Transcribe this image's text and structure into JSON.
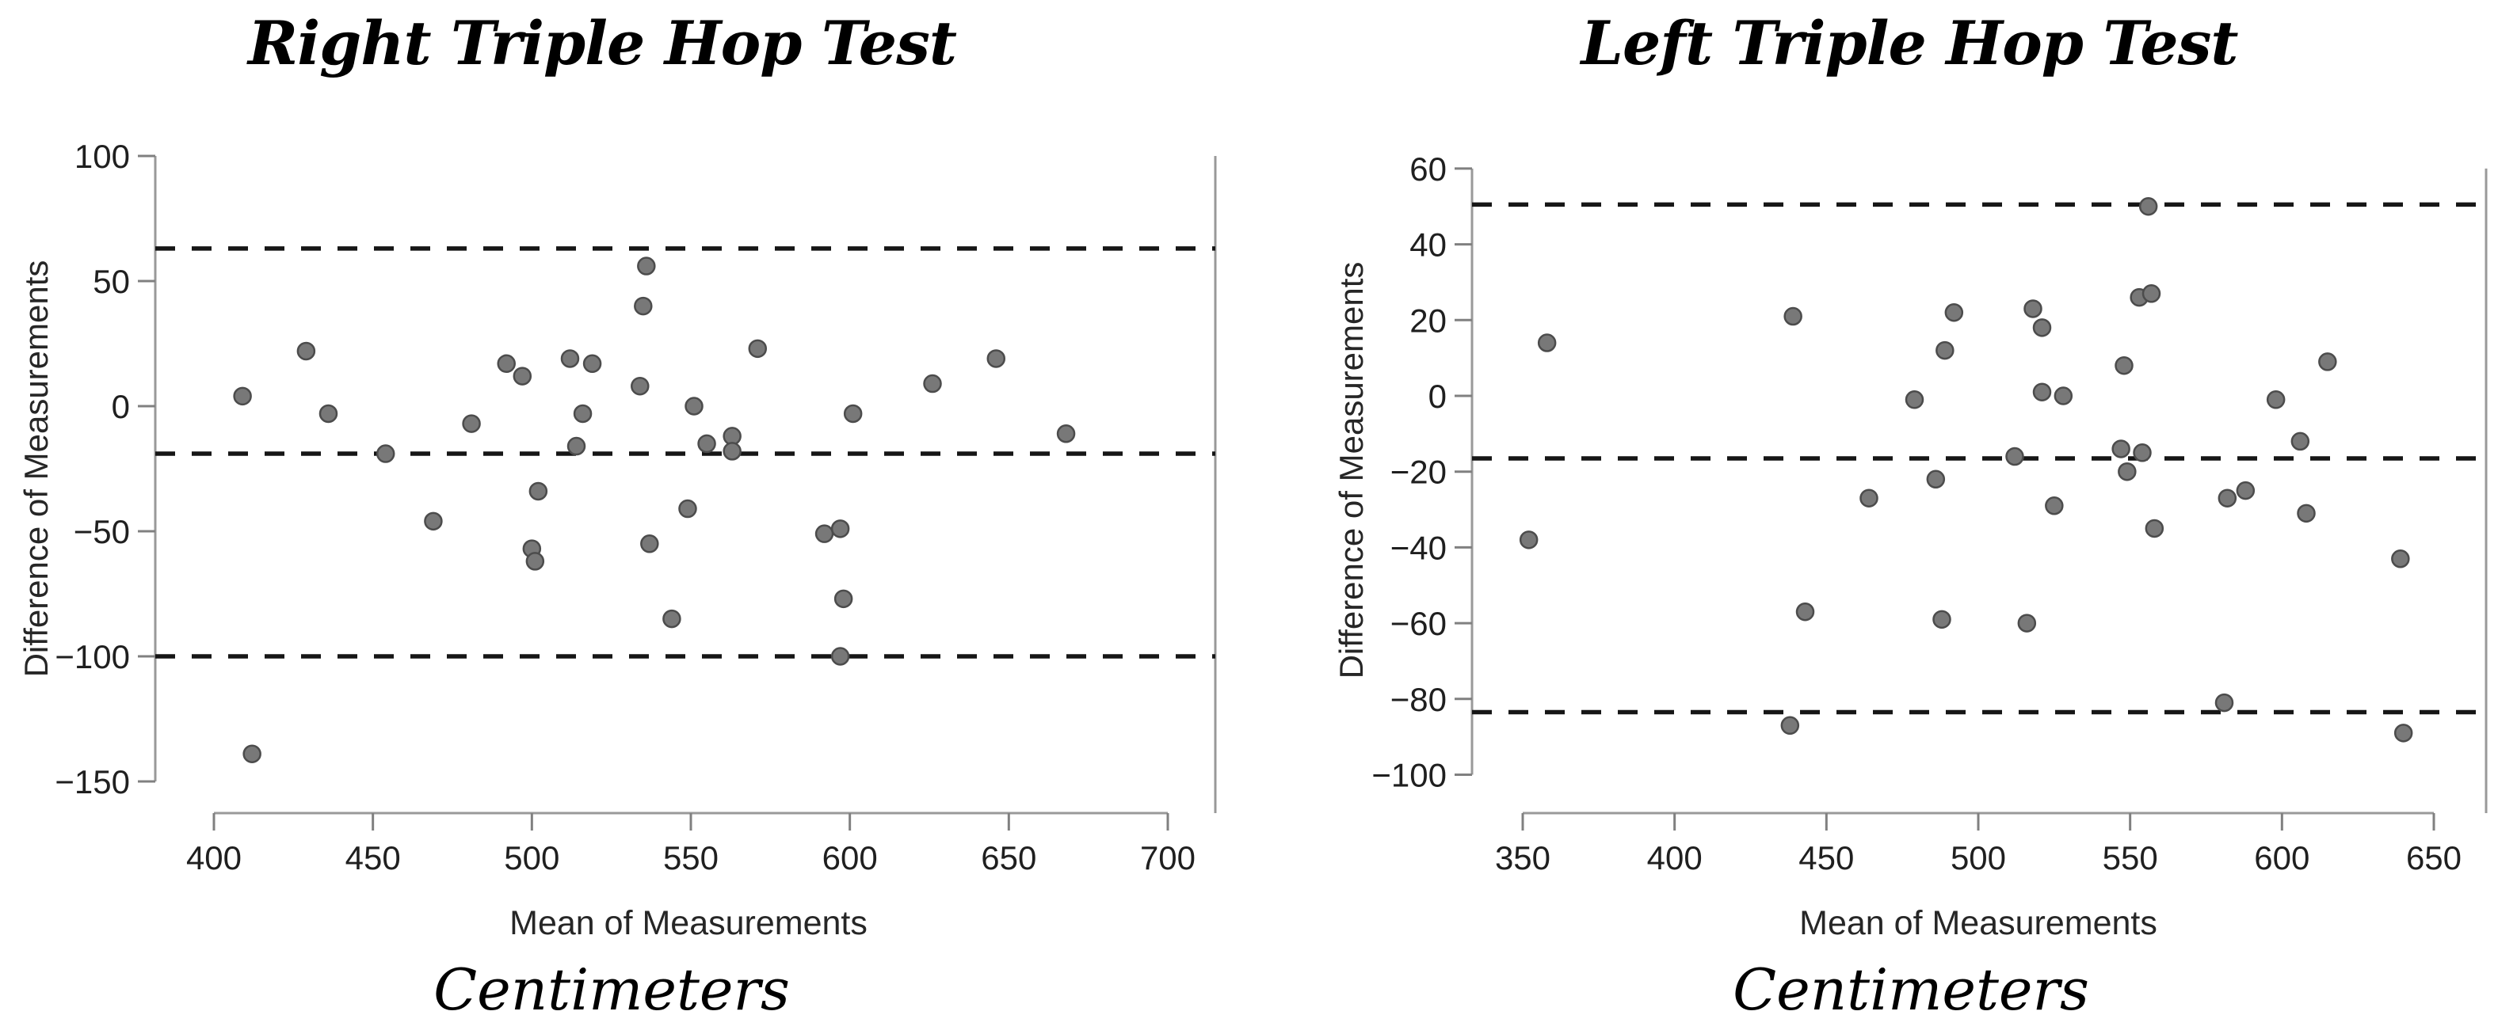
{
  "page": {
    "background": "#ffffff"
  },
  "styles": {
    "point_fill": "#787878",
    "point_stroke": "#4c4c4c",
    "dash_color": "#161616",
    "axis_color": "#999999",
    "tick_color": "#808080",
    "tick_label_color": "#1f1f1f",
    "axis_title_color": "#262626",
    "title_color": "#000000"
  },
  "chart_data": [
    {
      "id": "right-triple-hop",
      "type": "scatter",
      "title": "Right Triple Hop Test",
      "xlabel": "Mean of Measurements",
      "ylabel": "Difference of Measurements",
      "units_label": "Centimeters",
      "x_ticks": [
        400,
        450,
        500,
        550,
        600,
        650,
        700
      ],
      "y_ticks": [
        100,
        50,
        0,
        -50,
        -100,
        -150
      ],
      "xlim": [
        400,
        700
      ],
      "ylim": [
        -150,
        100
      ],
      "grid": false,
      "legend": false,
      "reference_lines": {
        "upper_loa": 63,
        "mean": -19,
        "lower_loa": -100
      },
      "points": [
        [
          409,
          4
        ],
        [
          429,
          22
        ],
        [
          436,
          -3
        ],
        [
          454,
          -19
        ],
        [
          469,
          -46
        ],
        [
          481,
          -7
        ],
        [
          492,
          17
        ],
        [
          497,
          12
        ],
        [
          502,
          -34
        ],
        [
          500,
          -57
        ],
        [
          501,
          -62
        ],
        [
          512,
          19
        ],
        [
          519,
          17
        ],
        [
          516,
          -3
        ],
        [
          514,
          -16
        ],
        [
          536,
          56
        ],
        [
          535,
          40
        ],
        [
          534,
          8
        ],
        [
          537,
          -55
        ],
        [
          544,
          -85
        ],
        [
          551,
          0
        ],
        [
          549,
          -41
        ],
        [
          555,
          -15
        ],
        [
          563,
          -12
        ],
        [
          563,
          -18
        ],
        [
          571,
          23
        ],
        [
          592,
          -51
        ],
        [
          597,
          -49
        ],
        [
          598,
          -77
        ],
        [
          597,
          -100
        ],
        [
          601,
          -3
        ],
        [
          626,
          9
        ],
        [
          646,
          19
        ],
        [
          668,
          -11
        ],
        [
          412,
          -139
        ]
      ]
    },
    {
      "id": "left-triple-hop",
      "type": "scatter",
      "title": "Left Triple Hop Test",
      "xlabel": "Mean of Measurements",
      "ylabel": "Difference of Measurements",
      "units_label": "Centimeters",
      "x_ticks": [
        350,
        400,
        450,
        500,
        550,
        600,
        650
      ],
      "y_ticks": [
        60,
        40,
        20,
        0,
        -20,
        -40,
        -60,
        -80,
        -100
      ],
      "xlim": [
        350,
        650
      ],
      "ylim": [
        -100,
        60
      ],
      "grid": false,
      "legend": false,
      "reference_lines": {
        "upper_loa": 50.5,
        "mean": -16.5,
        "lower_loa": -83.5
      },
      "points": [
        [
          358,
          14
        ],
        [
          352,
          -38
        ],
        [
          439,
          21
        ],
        [
          443,
          -57
        ],
        [
          438,
          -87
        ],
        [
          464,
          -27
        ],
        [
          479,
          -1
        ],
        [
          492,
          22
        ],
        [
          489,
          12
        ],
        [
          486,
          -22
        ],
        [
          488,
          -59
        ],
        [
          518,
          23
        ],
        [
          521,
          18
        ],
        [
          521,
          1
        ],
        [
          528,
          0
        ],
        [
          512,
          -16
        ],
        [
          525,
          -29
        ],
        [
          516,
          -60
        ],
        [
          548,
          8
        ],
        [
          547,
          -14
        ],
        [
          554,
          -15
        ],
        [
          549,
          -20
        ],
        [
          553,
          26
        ],
        [
          557,
          27
        ],
        [
          556,
          50
        ],
        [
          558,
          -35
        ],
        [
          582,
          -27
        ],
        [
          588,
          -25
        ],
        [
          581,
          -81
        ],
        [
          598,
          -1
        ],
        [
          606,
          -12
        ],
        [
          608,
          -31
        ],
        [
          615,
          9
        ],
        [
          639,
          -43
        ],
        [
          640,
          -89
        ]
      ]
    }
  ]
}
